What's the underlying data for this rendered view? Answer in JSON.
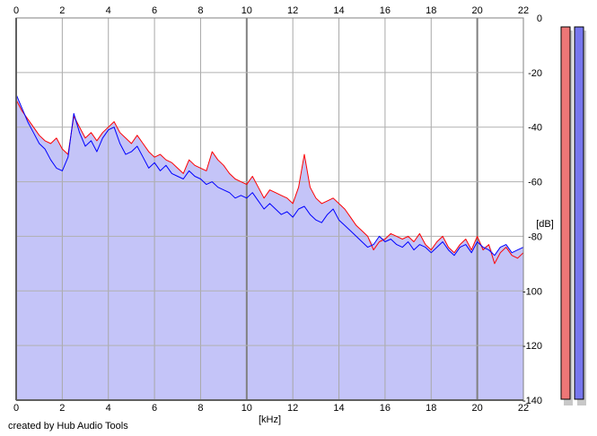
{
  "chart_data": {
    "type": "line",
    "xlabel": "[kHz]",
    "ylabel": "[dB]",
    "xlim": [
      0,
      22
    ],
    "ylim": [
      -140,
      0
    ],
    "x_ticks": [
      0,
      2,
      4,
      6,
      8,
      10,
      12,
      14,
      16,
      18,
      20,
      22
    ],
    "y_ticks": [
      0,
      -20,
      -40,
      -60,
      -80,
      -100,
      -120,
      -140
    ],
    "grid": true,
    "fill_color": "#c4c4f8",
    "series": [
      {
        "color": "#ff0000",
        "x": [
          0,
          0.25,
          0.5,
          0.75,
          1,
          1.25,
          1.5,
          1.75,
          2,
          2.25,
          2.5,
          2.75,
          3,
          3.25,
          3.5,
          3.75,
          4,
          4.25,
          4.5,
          4.75,
          5,
          5.25,
          5.5,
          5.75,
          6,
          6.25,
          6.5,
          6.75,
          7,
          7.25,
          7.5,
          7.75,
          8,
          8.25,
          8.5,
          8.75,
          9,
          9.25,
          9.5,
          9.75,
          10,
          10.25,
          10.5,
          10.75,
          11,
          11.25,
          11.5,
          11.75,
          12,
          12.25,
          12.5,
          12.75,
          13,
          13.25,
          13.5,
          13.75,
          14,
          14.25,
          14.5,
          14.75,
          15,
          15.25,
          15.5,
          15.75,
          16,
          16.25,
          16.5,
          16.75,
          17,
          17.25,
          17.5,
          17.75,
          18,
          18.25,
          18.5,
          18.75,
          19,
          19.25,
          19.5,
          19.75,
          20,
          20.25,
          20.5,
          20.75,
          21,
          21.25,
          21.5,
          21.75,
          22
        ],
        "values": [
          -30,
          -34,
          -37,
          -40,
          -43,
          -45,
          -46,
          -44,
          -48,
          -50,
          -36,
          -40,
          -44,
          -42,
          -45,
          -42,
          -40,
          -38,
          -42,
          -44,
          -46,
          -43,
          -46,
          -49,
          -51,
          -50,
          -52,
          -53,
          -55,
          -57,
          -52,
          -54,
          -55,
          -56,
          -49,
          -52,
          -54,
          -57,
          -59,
          -60,
          -61,
          -58,
          -62,
          -66,
          -63,
          -64,
          -65,
          -66,
          -68,
          -62,
          -50,
          -62,
          -66,
          -68,
          -67,
          -66,
          -68,
          -70,
          -73,
          -76,
          -78,
          -80,
          -85,
          -82,
          -81,
          -79,
          -80,
          -81,
          -80,
          -82,
          -79,
          -83,
          -85,
          -82,
          -80,
          -84,
          -86,
          -83,
          -81,
          -85,
          -80,
          -85,
          -83,
          -90,
          -86,
          -84,
          -87,
          -88,
          -86
        ]
      },
      {
        "color": "#0000ff",
        "x": [
          0,
          0.25,
          0.5,
          0.75,
          1,
          1.25,
          1.5,
          1.75,
          2,
          2.25,
          2.5,
          2.75,
          3,
          3.25,
          3.5,
          3.75,
          4,
          4.25,
          4.5,
          4.75,
          5,
          5.25,
          5.5,
          5.75,
          6,
          6.25,
          6.5,
          6.75,
          7,
          7.25,
          7.5,
          7.75,
          8,
          8.25,
          8.5,
          8.75,
          9,
          9.25,
          9.5,
          9.75,
          10,
          10.25,
          10.5,
          10.75,
          11,
          11.25,
          11.5,
          11.75,
          12,
          12.25,
          12.5,
          12.75,
          13,
          13.25,
          13.5,
          13.75,
          14,
          14.25,
          14.5,
          14.75,
          15,
          15.25,
          15.5,
          15.75,
          16,
          16.25,
          16.5,
          16.75,
          17,
          17.25,
          17.5,
          17.75,
          18,
          18.25,
          18.5,
          18.75,
          19,
          19.25,
          19.5,
          19.75,
          20,
          20.25,
          20.5,
          20.75,
          21,
          21.25,
          21.5,
          21.75,
          22
        ],
        "values": [
          -28,
          -33,
          -38,
          -42,
          -46,
          -48,
          -52,
          -55,
          -56,
          -51,
          -35,
          -42,
          -47,
          -45,
          -49,
          -44,
          -41,
          -40,
          -46,
          -50,
          -49,
          -47,
          -51,
          -55,
          -53,
          -56,
          -54,
          -57,
          -58,
          -59,
          -56,
          -58,
          -59,
          -61,
          -60,
          -62,
          -63,
          -64,
          -66,
          -65,
          -66,
          -64,
          -67,
          -70,
          -68,
          -70,
          -72,
          -71,
          -73,
          -70,
          -69,
          -72,
          -74,
          -75,
          -72,
          -70,
          -74,
          -76,
          -78,
          -80,
          -82,
          -84,
          -83,
          -80,
          -82,
          -81,
          -83,
          -84,
          -82,
          -85,
          -83,
          -84,
          -86,
          -84,
          -82,
          -85,
          -87,
          -84,
          -83,
          -86,
          -82,
          -84,
          -85,
          -87,
          -84,
          -83,
          -86,
          -85,
          -84
        ]
      }
    ]
  },
  "meters": {
    "left_color": "#ee7777",
    "right_color": "#7777ee"
  },
  "credit": "created by Hub Audio Tools"
}
